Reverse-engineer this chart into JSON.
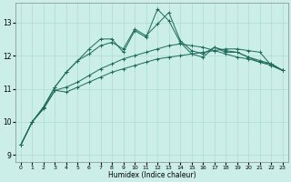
{
  "xlabel": "Humidex (Indice chaleur)",
  "background_color": "#cceee8",
  "grid_color": "#aaddcc",
  "line_color": "#1a6b5a",
  "xlim": [
    -0.5,
    23.5
  ],
  "ylim": [
    8.8,
    13.6
  ],
  "xticks": [
    0,
    1,
    2,
    3,
    4,
    5,
    6,
    7,
    8,
    9,
    10,
    11,
    12,
    13,
    14,
    15,
    16,
    17,
    18,
    19,
    20,
    21,
    22,
    23
  ],
  "yticks": [
    9,
    10,
    11,
    12,
    13
  ],
  "curve1_y": [
    9.3,
    10.0,
    10.4,
    10.95,
    10.9,
    11.05,
    11.2,
    11.35,
    11.5,
    11.6,
    11.7,
    11.8,
    11.9,
    11.95,
    12.0,
    12.05,
    12.1,
    12.15,
    12.2,
    12.2,
    12.15,
    12.1,
    11.7,
    11.55
  ],
  "curve2_y": [
    9.3,
    10.0,
    10.4,
    10.95,
    11.05,
    11.2,
    11.4,
    11.6,
    11.75,
    11.9,
    12.0,
    12.1,
    12.2,
    12.3,
    12.35,
    12.3,
    12.25,
    12.15,
    12.05,
    11.95,
    11.9,
    11.8,
    11.7,
    11.55
  ],
  "curve3_y": [
    9.3,
    10.0,
    10.45,
    11.05,
    11.5,
    11.85,
    12.05,
    12.3,
    12.4,
    12.2,
    12.8,
    12.6,
    12.95,
    13.3,
    12.45,
    12.15,
    12.05,
    12.25,
    12.15,
    12.1,
    11.95,
    11.85,
    11.75,
    11.55
  ],
  "curve4_y": [
    9.3,
    10.0,
    10.45,
    11.05,
    11.5,
    11.85,
    12.2,
    12.5,
    12.5,
    12.1,
    12.75,
    12.55,
    13.4,
    13.05,
    12.4,
    12.05,
    11.95,
    12.25,
    12.1,
    12.1,
    11.95,
    11.8,
    11.75,
    11.55
  ]
}
